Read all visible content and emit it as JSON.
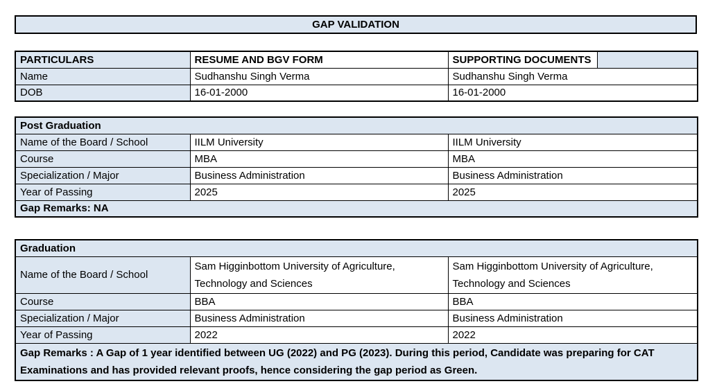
{
  "page": {
    "title": "GAP VALIDATION"
  },
  "colors": {
    "header_fill": "#dce6f1",
    "border": "#000000",
    "text": "#000000",
    "background": "#ffffff"
  },
  "particulars_table": {
    "headers": [
      "PARTICULARS",
      "RESUME AND BGV FORM",
      "SUPPORTING DOCUMENTS"
    ],
    "rows": [
      {
        "label": "Name",
        "resume": "Sudhanshu Singh Verma",
        "supporting": "Sudhanshu Singh Verma"
      },
      {
        "label": "DOB",
        "resume": "16-01-2000",
        "supporting": "16-01-2000"
      }
    ]
  },
  "post_graduation": {
    "section_title": "Post Graduation",
    "rows": [
      {
        "label": "Name of the Board / School",
        "resume": "IILM University",
        "supporting": "IILM University"
      },
      {
        "label": "Course",
        "resume": "MBA",
        "supporting": "MBA"
      },
      {
        "label": "Specialization / Major",
        "resume": "Business Administration",
        "supporting": "Business Administration"
      },
      {
        "label": "Year of Passing",
        "resume": "2025",
        "supporting": "2025"
      }
    ],
    "gap_remarks": "Gap Remarks: NA"
  },
  "graduation": {
    "section_title": "Graduation",
    "rows": [
      {
        "label": "Name of the Board / School",
        "resume": "Sam Higginbottom University of Agriculture, Technology and Sciences",
        "supporting": "Sam Higginbottom University of Agriculture, Technology and Sciences"
      },
      {
        "label": "Course",
        "resume": "BBA",
        "supporting": "BBA"
      },
      {
        "label": "Specialization / Major",
        "resume": "Business Administration",
        "supporting": "Business Administration"
      },
      {
        "label": "Year of Passing",
        "resume": "2022",
        "supporting": "2022"
      }
    ],
    "gap_remarks": "Gap Remarks : A Gap of 1 year identified between UG (2022) and PG (2023). During this period, Candidate was preparing for CAT Examinations and has provided relevant proofs, hence considering the gap period as Green."
  }
}
